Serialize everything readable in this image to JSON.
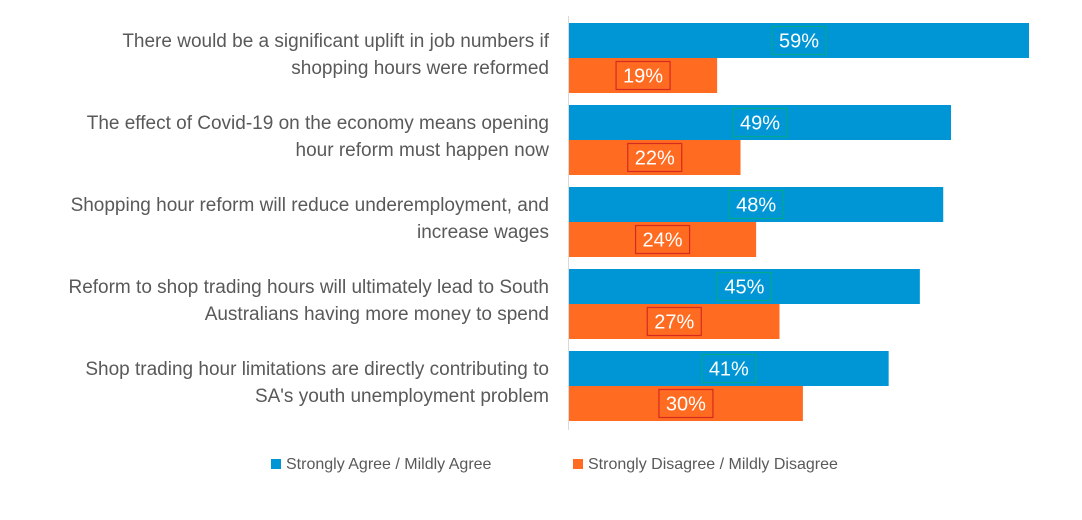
{
  "chart_data": {
    "type": "bar",
    "orientation": "horizontal",
    "categories": [
      [
        "There would be a significant uplift in job numbers if",
        "shopping hours were reformed"
      ],
      [
        "The effect of Covid-19 on the economy means opening",
        "hour reform must happen now"
      ],
      [
        "Shopping hour reform will reduce underemployment, and",
        "increase wages"
      ],
      [
        "Reform to shop trading hours will ultimately lead to South",
        "Australians having more money to spend"
      ],
      [
        "Shop trading hour limitations are directly contributing to",
        "SA's youth unemployment problem"
      ]
    ],
    "series": [
      {
        "name": "Strongly Agree / Mildly Agree",
        "color": "#0096D6",
        "values": [
          59,
          49,
          48,
          45,
          41
        ],
        "labels": [
          "59%",
          "49%",
          "48%",
          "45%",
          "41%"
        ]
      },
      {
        "name": "Strongly Disagree / Mildly Disagree",
        "color": "#FF6B21",
        "values": [
          19,
          22,
          24,
          27,
          30
        ],
        "labels": [
          "19%",
          "22%",
          "24%",
          "27%",
          "30%"
        ]
      }
    ],
    "xlim": [
      0,
      60
    ],
    "grid": false,
    "legend": "bottom"
  }
}
